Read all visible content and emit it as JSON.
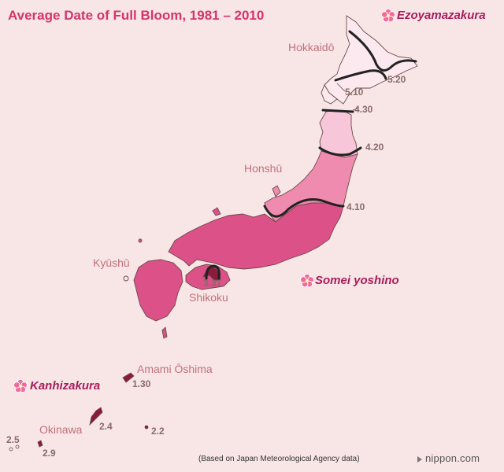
{
  "title": "Average Date of Full Bloom, 1981 – 2010",
  "source": "(Based on Japan Meteorological Agency data)",
  "logo": {
    "text": "nippon.com",
    "mark": "arrow-mark-icon"
  },
  "colors": {
    "background": "#f8e6e6",
    "zone_before_3_31": "#8b1a3c",
    "zone_3_31_to_4_10": "#dc5187",
    "zone_4_10_to_4_20": "#f08bb0",
    "zone_4_20_to_4_30": "#f7c6d8",
    "zone_4_30_to_5_20": "#fce9f0",
    "isoline": "#222222",
    "title": "#d6336c",
    "variety_label": "#a81c5c",
    "region_label": "#c0707a",
    "date_label": "#8a6a6a"
  },
  "regions": {
    "hokkaido": "Hokkaidō",
    "honshu": "Honshū",
    "kyushu": "Kyūshū",
    "shikoku": "Shikoku",
    "amami": "Amami Ōshima",
    "okinawa": "Okinawa"
  },
  "isolines": [
    {
      "date": "5.20"
    },
    {
      "date": "5.10"
    },
    {
      "date": "4.30"
    },
    {
      "date": "4.20"
    },
    {
      "date": "4.10"
    },
    {
      "date": "3.31"
    }
  ],
  "island_dates": {
    "amami": "1.30",
    "okinawa_main": "2.4",
    "daito": "2.2",
    "miyako": "2.9",
    "yaeyama": "2.5"
  },
  "varieties": {
    "north": {
      "name": "Ezoyamazakura",
      "icon": "cherry-blossom-icon"
    },
    "main": {
      "name": "Somei yoshino",
      "icon": "cherry-blossom-icon"
    },
    "south": {
      "name": "Kanhizakura",
      "icon": "cherry-blossom-icon"
    }
  }
}
